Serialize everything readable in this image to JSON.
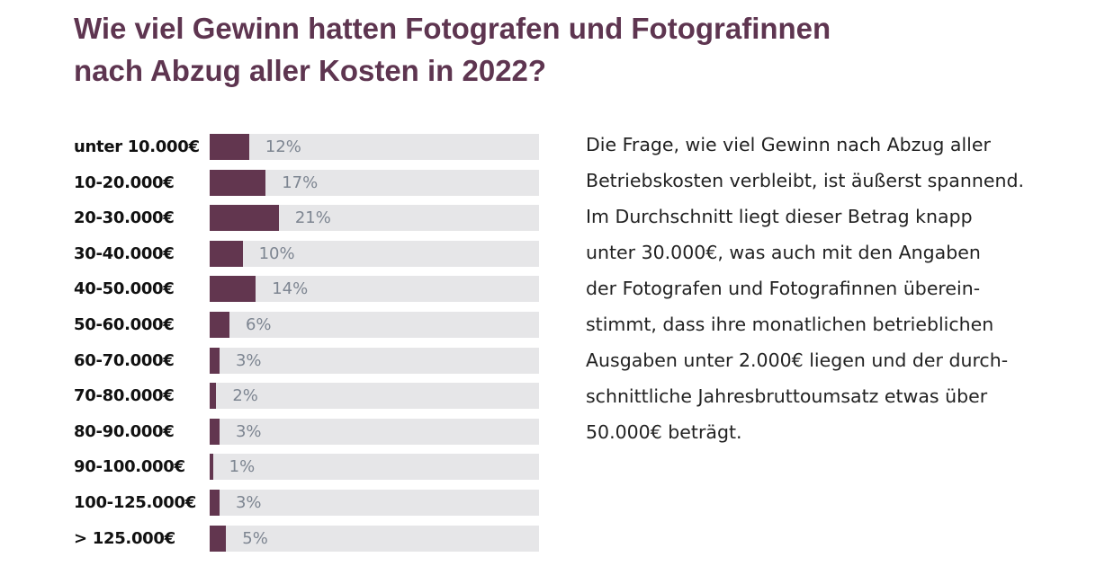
{
  "chart_data": {
    "type": "bar",
    "orientation": "horizontal",
    "title": "Wie viel Gewinn hatten Fotografen und Fotografinnen nach Abzug aller Kosten in 2022?",
    "title_lines": [
      "Wie viel Gewinn hatten Fotografen und Fotografinnen",
      "nach Abzug aller Kosten in 2022?"
    ],
    "categories": [
      "unter 10.000€",
      "10-20.000€",
      "20-30.000€",
      "30-40.000€",
      "40-50.000€",
      "50-60.000€",
      "60-70.000€",
      "70-80.000€",
      "80-90.000€",
      "90-100.000€",
      "100-125.000€",
      "> 125.000€"
    ],
    "values": [
      12,
      17,
      21,
      10,
      14,
      6,
      3,
      2,
      3,
      1,
      3,
      5
    ],
    "value_labels": [
      "12%",
      "17%",
      "21%",
      "10%",
      "14%",
      "6%",
      "3%",
      "2%",
      "3%",
      "1%",
      "3%",
      "5%"
    ],
    "xlim": [
      0,
      100
    ],
    "unit": "%",
    "colors": {
      "bar": "#62364f",
      "track": "#e6e6e8",
      "label": "#7d8591",
      "title": "#5e3550"
    }
  },
  "description": {
    "lines": [
      "Die Frage, wie viel Gewinn nach Abzug aller",
      "Betriebskosten verbleibt, ist äußerst spannend.",
      "Im Durchschnitt liegt dieser Betrag knapp",
      "unter 30.000€, was auch mit den Angaben",
      "der Fotografen und Fotografinnen überein-",
      "stimmt, dass ihre monatlichen betrieblichen",
      "Ausgaben unter 2.000€ liegen und der durch-",
      "schnittliche Jahresbruttoumsatz etwas über",
      "50.000€ beträgt."
    ]
  }
}
